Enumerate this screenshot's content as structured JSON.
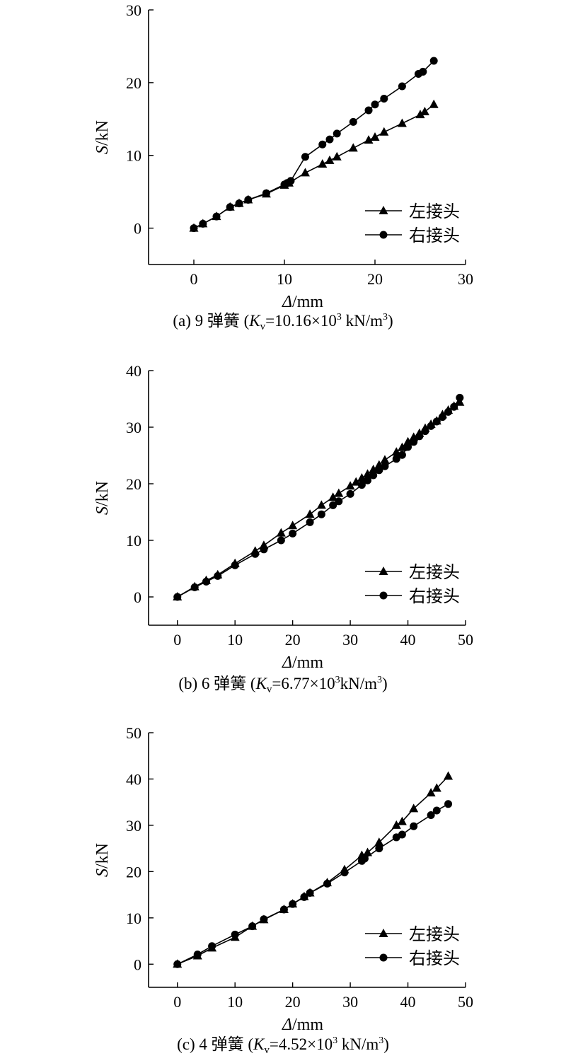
{
  "chart_data": [
    {
      "type": "line",
      "caption": "(a) 9 弹簧 (Kv=10.16×10³ kN/m³)",
      "caption_parts": {
        "prefix": "(a) 9 弹簧 (",
        "k": "K",
        "sub": "v",
        "mid": "=10.16×10",
        "sup1": "3",
        "unit": " kN/m",
        "sup2": "3",
        "end": ")"
      },
      "xlabel": "Δ/mm",
      "ylabel": "S/kN",
      "xlim": [
        -5,
        30
      ],
      "ylim": [
        -5,
        30
      ],
      "xticks": [
        0,
        10,
        20,
        30
      ],
      "yticks": [
        0,
        10,
        20,
        30
      ],
      "legend_position": "bottom-right",
      "series": [
        {
          "name": "左接头",
          "marker": "triangle",
          "x": [
            0,
            1,
            2.5,
            4,
            5,
            6,
            8,
            10,
            10.5,
            12.3,
            14.2,
            15,
            15.8,
            17.6,
            19.3,
            20,
            21,
            23,
            25,
            25.5,
            26.5
          ],
          "y": [
            0,
            0.6,
            1.6,
            2.9,
            3.4,
            3.9,
            4.7,
            5.9,
            6.2,
            7.6,
            8.8,
            9.3,
            9.8,
            11,
            12.1,
            12.5,
            13.2,
            14.4,
            15.6,
            16,
            17
          ]
        },
        {
          "name": "右接头",
          "marker": "circle",
          "x": [
            0,
            1,
            2.5,
            4,
            5,
            6,
            8,
            10,
            10.3,
            10.7,
            12.3,
            14.2,
            15,
            15.8,
            17.6,
            19.3,
            20,
            21,
            23,
            24.8,
            25.3,
            26.5
          ],
          "y": [
            0,
            0.6,
            1.6,
            2.9,
            3.4,
            3.9,
            4.8,
            6,
            6.2,
            6.5,
            9.8,
            11.5,
            12.2,
            13,
            14.6,
            16.2,
            17,
            17.8,
            19.5,
            21.2,
            21.5,
            23
          ]
        }
      ]
    },
    {
      "type": "line",
      "caption": "(b) 6 弹簧 (Kv=6.77×10³kN/m³)",
      "caption_parts": {
        "prefix": "(b) 6 弹簧 (",
        "k": "K",
        "sub": "v",
        "mid": "=6.77×10",
        "sup1": "3",
        "unit": "kN/m",
        "sup2": "3",
        "end": ")"
      },
      "xlabel": "Δ/mm",
      "ylabel": "S/kN",
      "xlim": [
        -5,
        50
      ],
      "ylim": [
        -5,
        40
      ],
      "xticks": [
        0,
        10,
        20,
        30,
        40,
        50
      ],
      "yticks": [
        0,
        10,
        20,
        30,
        40
      ],
      "legend_position": "bottom-right",
      "series": [
        {
          "name": "左接头",
          "marker": "triangle",
          "x": [
            0,
            3,
            5,
            7,
            10,
            13.5,
            15,
            18,
            20,
            23,
            25,
            27,
            28,
            30,
            31,
            32,
            33,
            34,
            35,
            36,
            38,
            39,
            40,
            41,
            42,
            43,
            44,
            45,
            46,
            47,
            48,
            49
          ],
          "y": [
            0,
            1.8,
            2.9,
            3.9,
            5.9,
            8.1,
            9.1,
            11.3,
            12.6,
            14.6,
            16.2,
            17.6,
            18.3,
            19.6,
            20.3,
            21,
            21.7,
            22.5,
            23.3,
            24.2,
            25.6,
            26.4,
            27.4,
            28.2,
            28.9,
            29.8,
            30.5,
            31.1,
            32.2,
            33,
            33.7,
            34.4
          ]
        },
        {
          "name": "右接头",
          "marker": "circle",
          "x": [
            0,
            3,
            5,
            7,
            10,
            13.5,
            15,
            18,
            20,
            23,
            25,
            27,
            28,
            30,
            32,
            33,
            34,
            35,
            36,
            38,
            39,
            40,
            41,
            42,
            43,
            44,
            45,
            46,
            47,
            48,
            49
          ],
          "y": [
            0,
            1.7,
            2.7,
            3.7,
            5.6,
            7.6,
            8.4,
            10,
            11.2,
            13.2,
            14.6,
            16.2,
            16.9,
            18.2,
            19.8,
            20.6,
            21.5,
            22.4,
            23.1,
            24.4,
            25.1,
            26.5,
            27.4,
            28.4,
            29.3,
            30.2,
            31,
            31.8,
            32.7,
            33.6,
            35.2
          ]
        }
      ]
    },
    {
      "type": "line",
      "caption": "(c) 4 弹簧 (Kv=4.52×10³ kN/m³)",
      "caption_parts": {
        "prefix": "(c) 4 弹簧 (",
        "k": "K",
        "sub": "v",
        "mid": "=4.52×10",
        "sup1": "3",
        "unit": " kN/m",
        "sup2": "3",
        "end": ")"
      },
      "xlabel": "Δ/mm",
      "ylabel": "S/kN",
      "xlim": [
        -5,
        50
      ],
      "ylim": [
        -5,
        50
      ],
      "xticks": [
        0,
        10,
        20,
        30,
        40,
        50
      ],
      "yticks": [
        0,
        10,
        20,
        30,
        40,
        50
      ],
      "legend_position": "bottom-right",
      "series": [
        {
          "name": "左接头",
          "marker": "triangle",
          "x": [
            0,
            3.5,
            6,
            10,
            13,
            15,
            18.5,
            20,
            22,
            23,
            26,
            29,
            32,
            33,
            35,
            38,
            39,
            41,
            44,
            45,
            47
          ],
          "y": [
            0,
            1.8,
            3.5,
            5.8,
            8.2,
            9.6,
            11.8,
            13,
            14.6,
            15.4,
            17.6,
            20.4,
            23.5,
            24.1,
            26.3,
            30,
            30.8,
            33.6,
            37,
            38,
            40.6
          ]
        },
        {
          "name": "右接头",
          "marker": "circle",
          "x": [
            0,
            3.5,
            6,
            10,
            13,
            15,
            18.5,
            20,
            22,
            23,
            26,
            29,
            32,
            32.5,
            35,
            38,
            39,
            41,
            44,
            45,
            47
          ],
          "y": [
            0,
            2.1,
            3.9,
            6.4,
            8.2,
            9.7,
            11.8,
            13,
            14.5,
            15.4,
            17.4,
            19.8,
            22.3,
            22.8,
            25,
            27.4,
            28,
            29.8,
            32.2,
            33.2,
            34.6
          ]
        }
      ]
    }
  ]
}
